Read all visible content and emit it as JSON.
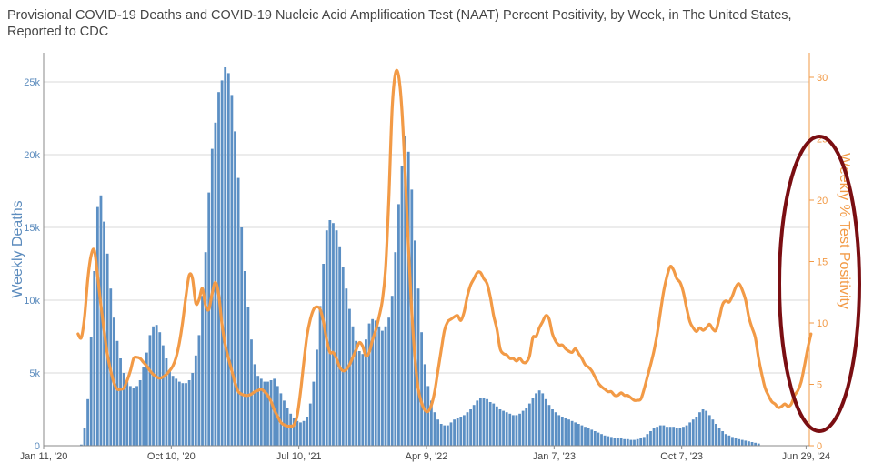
{
  "title": {
    "line1": "Provisional COVID-19 Deaths and COVID-19 Nucleic Acid Amplification Test (NAAT) Percent Positivity, by Week, in The United States,",
    "line2": "Reported to CDC"
  },
  "chart_data": {
    "type": "bar+line",
    "title": "Provisional COVID-19 Deaths and COVID-19 Nucleic Acid Amplification Test (NAAT) Percent Positivity, by Week, in The United States, Reported to CDC",
    "ylabel_left": "Weekly Deaths",
    "ylabel_right": "Weekly % Test Positivity",
    "ylim_left": [
      0,
      27000
    ],
    "ylim_right": [
      0,
      32
    ],
    "y_ticks_left": [
      {
        "value": 0,
        "label": "0"
      },
      {
        "value": 5000,
        "label": "5k"
      },
      {
        "value": 10000,
        "label": "10k"
      },
      {
        "value": 15000,
        "label": "15k"
      },
      {
        "value": 20000,
        "label": "20k"
      },
      {
        "value": 25000,
        "label": "25k"
      }
    ],
    "y_ticks_right": [
      {
        "value": 0,
        "label": "0"
      },
      {
        "value": 5,
        "label": "5"
      },
      {
        "value": 10,
        "label": "10"
      },
      {
        "value": 15,
        "label": "15"
      },
      {
        "value": 20,
        "label": "20"
      },
      {
        "value": 25,
        "label": "25"
      },
      {
        "value": 30,
        "label": "30"
      }
    ],
    "x_ticks": [
      {
        "week": 0,
        "label": "Jan 11, '20"
      },
      {
        "week": 39,
        "label": "Oct 10, '20"
      },
      {
        "week": 78,
        "label": "Jul 10, '21"
      },
      {
        "week": 117,
        "label": "Apr 9, '22"
      },
      {
        "week": 156,
        "label": "Jan 7, '23"
      },
      {
        "week": 195,
        "label": "Oct 7, '23"
      },
      {
        "week": 233,
        "label": "Jun 29, '24"
      }
    ],
    "x_range": [
      0,
      234
    ],
    "grid": true,
    "annotation": "dark red ellipse highlighting right axis",
    "series": [
      {
        "name": "Weekly Deaths",
        "type": "bar",
        "axis": "left",
        "color": "#5b8fc4",
        "start_week": 0,
        "values": [
          0,
          0,
          0,
          0,
          0,
          0,
          0,
          0,
          0,
          0,
          10,
          80,
          1200,
          3200,
          7500,
          12000,
          16400,
          17200,
          15400,
          13200,
          10800,
          8800,
          7200,
          6000,
          5000,
          4400,
          4100,
          4000,
          4100,
          4500,
          5400,
          6400,
          7600,
          8200,
          8300,
          7800,
          6900,
          6000,
          5200,
          4800,
          4600,
          4400,
          4300,
          4300,
          4500,
          5000,
          6200,
          7600,
          10300,
          13300,
          17400,
          20400,
          22200,
          24300,
          25100,
          26000,
          25600,
          24100,
          21600,
          18400,
          15000,
          12000,
          9500,
          7300,
          5600,
          4800,
          4600,
          4400,
          4400,
          4500,
          4600,
          4100,
          3600,
          3100,
          2600,
          2200,
          1900,
          1700,
          1600,
          1700,
          2000,
          2900,
          4400,
          6600,
          9600,
          12500,
          14800,
          15500,
          15300,
          14800,
          13700,
          12300,
          10800,
          9400,
          8200,
          7200,
          6500,
          6300,
          7300,
          8400,
          8700,
          8600,
          8200,
          7900,
          8200,
          8800,
          10300,
          13300,
          16600,
          19200,
          21300,
          20200,
          17600,
          14100,
          10800,
          7800,
          5600,
          4100,
          3100,
          2300,
          1800,
          1500,
          1400,
          1400,
          1600,
          1800,
          1900,
          2000,
          2100,
          2300,
          2500,
          2800,
          3100,
          3300,
          3300,
          3200,
          3000,
          2900,
          2700,
          2500,
          2400,
          2300,
          2200,
          2100,
          2100,
          2200,
          2400,
          2600,
          2900,
          3300,
          3600,
          3800,
          3600,
          3200,
          2800,
          2500,
          2300,
          2100,
          2000,
          1900,
          1800,
          1700,
          1600,
          1500,
          1400,
          1300,
          1200,
          1100,
          1000,
          900,
          800,
          700,
          650,
          600,
          550,
          500,
          500,
          450,
          450,
          400,
          400,
          450,
          500,
          600,
          800,
          1000,
          1200,
          1300,
          1400,
          1400,
          1300,
          1300,
          1300,
          1200,
          1200,
          1300,
          1400,
          1600,
          1800,
          2000,
          2300,
          2500,
          2400,
          2100,
          1800,
          1500,
          1200,
          1000,
          800,
          700,
          600,
          500,
          450,
          400,
          350,
          300,
          250,
          200,
          150
        ]
      },
      {
        "name": "Weekly % Test Positivity",
        "type": "line",
        "axis": "right",
        "color": "#f29a46",
        "start_week": 10,
        "values": [
          9.1,
          8.8,
          10.5,
          13.6,
          15.5,
          15.9,
          13.8,
          11.4,
          9.3,
          7.4,
          6.1,
          5.1,
          4.6,
          4.6,
          4.7,
          5.3,
          6.1,
          7.1,
          7.2,
          7.1,
          6.8,
          6.5,
          6.1,
          5.8,
          5.6,
          5.5,
          5.6,
          5.8,
          6.1,
          6.5,
          7.2,
          8.4,
          10.1,
          12.2,
          13.9,
          13.6,
          11.6,
          11.9,
          12.8,
          11.4,
          11.1,
          12.4,
          13.3,
          12.3,
          9.9,
          8.2,
          7.1,
          6.1,
          5.1,
          4.4,
          4.2,
          4.1,
          4.1,
          4.2,
          4.4,
          4.5,
          4.6,
          4.4,
          4.1,
          3.6,
          2.9,
          2.4,
          1.9,
          1.7,
          1.6,
          1.6,
          1.7,
          2.5,
          4.4,
          6.8,
          9.0,
          10.3,
          11.1,
          11.3,
          11.1,
          10.1,
          8.6,
          7.6,
          7.6,
          7.1,
          6.4,
          6.1,
          6.2,
          6.6,
          7.2,
          7.8,
          8.4,
          8.1,
          7.3,
          7.6,
          8.6,
          9.4,
          10.5,
          11.8,
          14.4,
          20.1,
          27.4,
          30.3,
          30.1,
          27.3,
          22.1,
          16.1,
          10.9,
          7.1,
          4.6,
          3.5,
          2.9,
          2.8,
          3.3,
          4.4,
          6.1,
          7.8,
          9.4,
          10.1,
          10.3,
          10.5,
          10.6,
          10.2,
          10.9,
          12.2,
          13.1,
          13.6,
          14.1,
          14.1,
          13.6,
          13.2,
          12.1,
          10.6,
          9.5,
          7.9,
          7.5,
          7.4,
          7.1,
          7.1,
          6.9,
          7.1,
          6.8,
          6.8,
          7.3,
          8.8,
          8.9,
          9.6,
          10.1,
          10.6,
          10.3,
          9.1,
          8.5,
          8.2,
          8.2,
          7.9,
          7.7,
          7.6,
          7.9,
          7.5,
          7.1,
          6.6,
          6.4,
          6.1,
          5.6,
          5.1,
          4.8,
          4.6,
          4.4,
          4.4,
          4.1,
          4.1,
          4.3,
          4.1,
          4.1,
          3.9,
          3.7,
          3.7,
          3.8,
          4.6,
          5.6,
          6.6,
          7.7,
          9.1,
          10.9,
          12.6,
          13.8,
          14.6,
          14.3,
          13.6,
          13.3,
          12.5,
          11.2,
          10.1,
          9.6,
          9.3,
          9.6,
          9.4,
          9.6,
          9.9,
          9.5,
          9.4,
          10.4,
          11.5,
          11.8,
          11.7,
          12.2,
          12.9,
          13.2,
          12.7,
          11.9,
          10.5,
          9.6,
          8.8,
          7.1,
          5.8,
          4.7,
          4.1,
          3.6,
          3.4,
          3.1,
          3.2,
          3.4,
          3.2,
          3.4,
          4.1,
          4.5,
          5.2,
          6.5,
          7.9,
          9.1
        ]
      }
    ]
  }
}
